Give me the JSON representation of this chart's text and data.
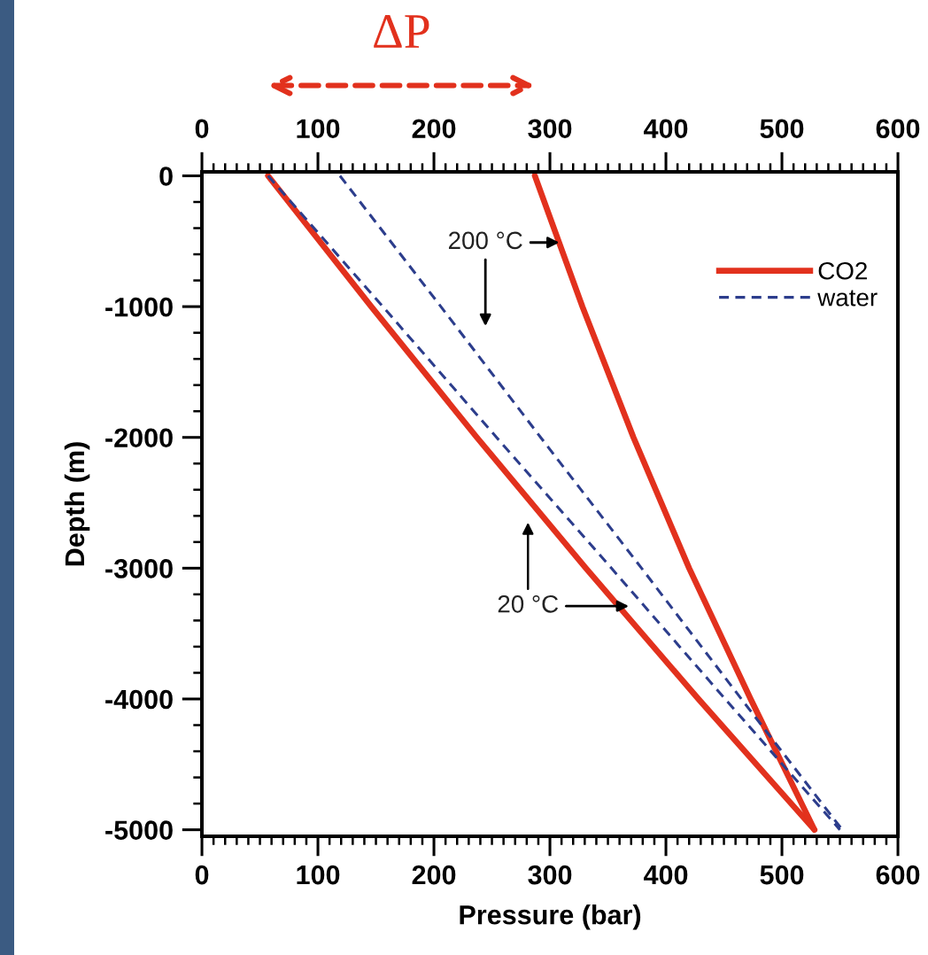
{
  "chart_data": {
    "type": "line",
    "xlabel": "Pressure (bar)",
    "ylabel": "Depth (m)",
    "xlim": [
      0,
      600
    ],
    "xticks": [
      0,
      100,
      200,
      300,
      400,
      500,
      600
    ],
    "x2lim": [
      0,
      600
    ],
    "x2ticks": [
      0,
      100,
      200,
      300,
      400,
      500,
      600
    ],
    "ylim": [
      -5050,
      30
    ],
    "yticks": [
      -5000,
      -4000,
      -3000,
      -2000,
      -1000,
      0
    ],
    "legend": "top right",
    "series": [
      {
        "name": "CO2",
        "color": "#e2311d",
        "line_style": "solid",
        "x": [
          57,
          146,
          237,
          331,
          428,
          528
        ],
        "values": [
          0,
          -1000,
          -2000,
          -3000,
          -4000,
          -5000
        ]
      },
      {
        "color": "#e2311d",
        "line_style": "solid",
        "x": [
          287,
          328,
          372,
          420,
          473,
          528
        ],
        "values": [
          0,
          -1000,
          -2000,
          -3000,
          -4000,
          -5000
        ]
      },
      {
        "name": "water",
        "color": "#2c3d8c",
        "line_style": "dashed",
        "x": [
          57,
          156,
          254,
          353,
          451,
          550
        ],
        "values": [
          0,
          -1000,
          -2000,
          -3000,
          -4000,
          -5000
        ]
      },
      {
        "color": "#2c3d8c",
        "line_style": "dashed",
        "x": [
          119,
          206,
          292,
          379,
          465,
          552
        ],
        "values": [
          0,
          -1000,
          -2000,
          -3000,
          -4000,
          -5000
        ]
      }
    ],
    "annotations": [
      "ΔP",
      {
        "text": "200 °C",
        "x": 308,
        "y": -510
      },
      {
        "text": "20 °C",
        "x": 368,
        "y": -3290
      }
    ]
  }
}
